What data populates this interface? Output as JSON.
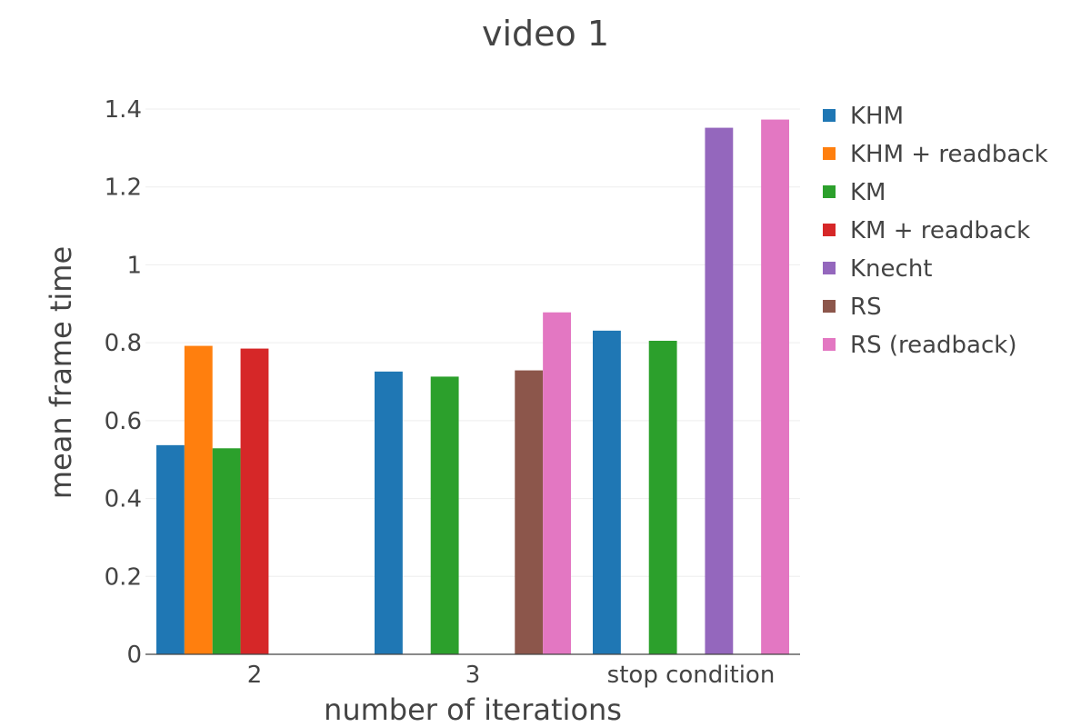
{
  "chart_data": {
    "type": "bar",
    "title": "video 1",
    "xlabel": "number of iterations",
    "ylabel": "mean frame time",
    "categories": [
      "2",
      "3",
      "stop condition"
    ],
    "ylim": [
      0,
      1.4
    ],
    "yticks": [
      0,
      0.2,
      0.4,
      0.6,
      0.8,
      1,
      1.2,
      1.4
    ],
    "grid": true,
    "legend_position": "right",
    "series": [
      {
        "name": "KHM",
        "color": "#1f77b4",
        "values": [
          0.537,
          0.726,
          0.831
        ]
      },
      {
        "name": "KHM + readback",
        "color": "#ff7f0e",
        "values": [
          0.792,
          null,
          null
        ]
      },
      {
        "name": "KM",
        "color": "#2ca02c",
        "values": [
          0.529,
          0.713,
          0.805
        ]
      },
      {
        "name": "KM + readback",
        "color": "#d62728",
        "values": [
          0.785,
          null,
          null
        ]
      },
      {
        "name": "Knecht",
        "color": "#9467bd",
        "values": [
          null,
          null,
          1.352
        ]
      },
      {
        "name": "RS",
        "color": "#8c564b",
        "values": [
          null,
          0.729,
          null
        ]
      },
      {
        "name": "RS (readback)",
        "color": "#e377c2",
        "values": [
          null,
          0.878,
          1.373
        ]
      }
    ]
  }
}
